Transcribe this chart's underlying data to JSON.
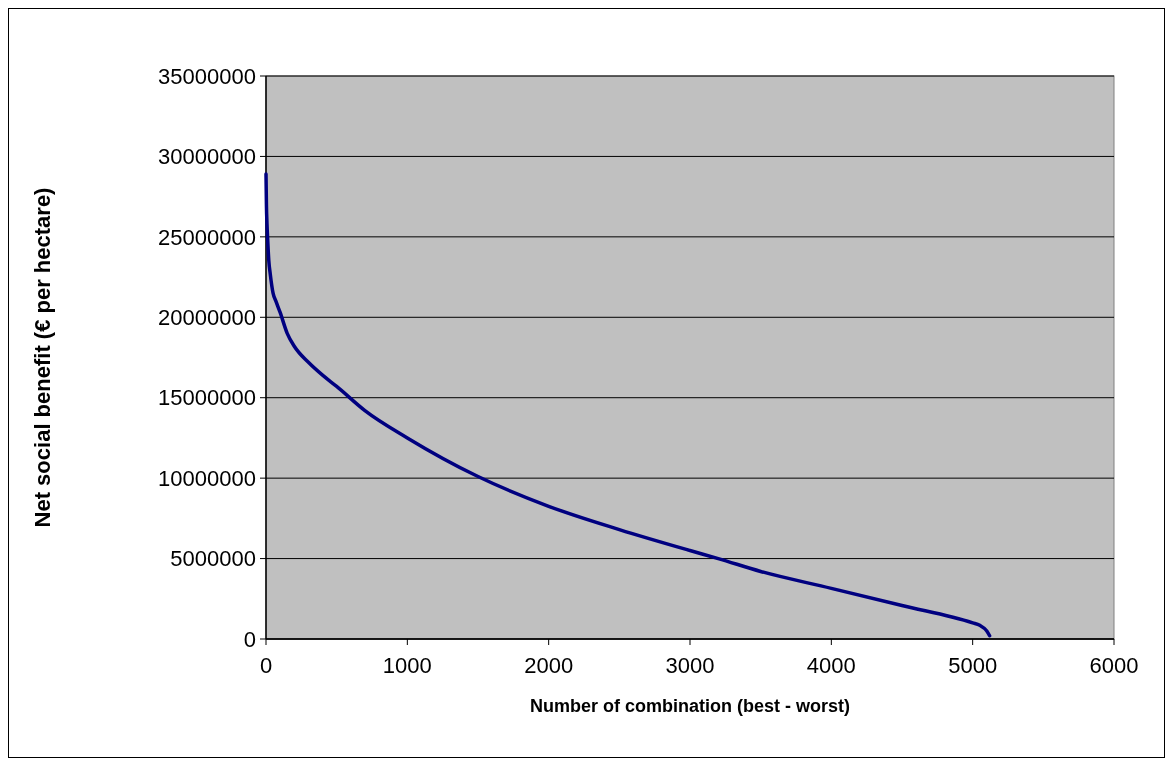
{
  "chart_data": {
    "type": "line",
    "xlabel": "Number of combination (best - worst)",
    "ylabel": "Net social benefit (€ per hectare)",
    "series": [
      {
        "color": "#000080",
        "x": [
          0,
          3,
          7,
          11,
          20,
          30,
          50,
          70,
          100,
          150,
          200,
          300,
          400,
          500,
          700,
          1000,
          1500,
          2000,
          2500,
          3000,
          3200,
          3500,
          4000,
          4500,
          5000,
          5050,
          5100,
          5120
        ],
        "values": [
          28900000,
          27000000,
          25800000,
          25000000,
          23500000,
          22700000,
          21500000,
          21000000,
          20300000,
          19000000,
          18200000,
          17200000,
          16400000,
          15700000,
          14200000,
          12500000,
          10100000,
          8250000,
          6800000,
          5500000,
          5000000,
          4200000,
          3150000,
          2080000,
          1000000,
          850000,
          500000,
          200000
        ]
      }
    ],
    "xlim": [
      0,
      6000
    ],
    "xticks": [
      0,
      1000,
      2000,
      3000,
      4000,
      5000,
      6000
    ],
    "ylim": [
      0,
      35000000
    ],
    "yticks": [
      0,
      5000000,
      10000000,
      15000000,
      20000000,
      25000000,
      30000000,
      35000000
    ],
    "grid": "y",
    "marker": "none",
    "line_style": "solid"
  }
}
